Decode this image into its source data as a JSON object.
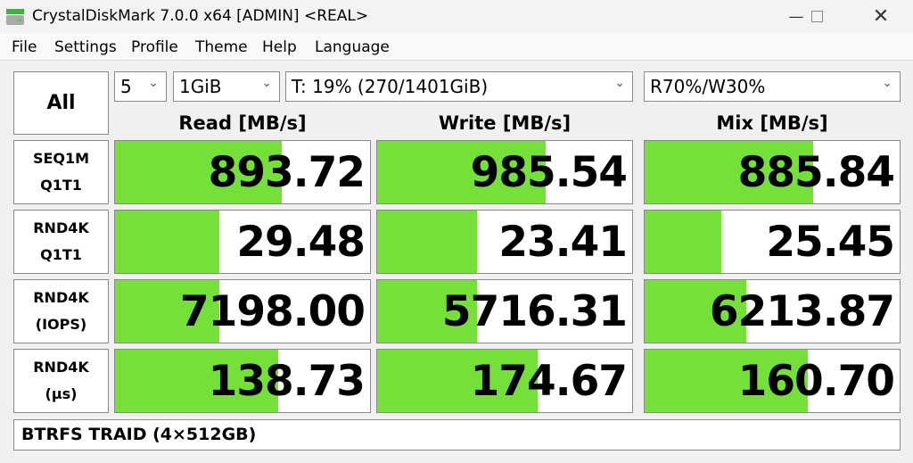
{
  "window": {
    "title": "CrystalDiskMark 7.0.0 x64 [ADMIN] <REAL>",
    "icons": [
      "app-disk-icon",
      "minimize-icon",
      "maximize-icon",
      "close-icon"
    ]
  },
  "menu": [
    "File",
    "Settings",
    "Profile",
    "Theme",
    "Help",
    "Language"
  ],
  "controls": {
    "all_label": "All",
    "count": "5",
    "size": "1GiB",
    "drive": "T: 19% (270/1401GiB)",
    "mix": "R70%/W30%"
  },
  "columns": [
    "Read [MB/s]",
    "Write [MB/s]",
    "Mix [MB/s]"
  ],
  "colors": {
    "bar": "#76e03a"
  },
  "rows": [
    {
      "label1": "SEQ1M",
      "label2": "Q1T1",
      "values": [
        "893.72",
        "985.54",
        "885.84"
      ],
      "fill": [
        0.655,
        0.66,
        0.66
      ]
    },
    {
      "label1": "RND4K",
      "label2": "Q1T1",
      "values": [
        "29.48",
        "23.41",
        "25.45"
      ],
      "fill": [
        0.41,
        0.39,
        0.3
      ]
    },
    {
      "label1": "RND4K",
      "label2": "(IOPS)",
      "values": [
        "7198.00",
        "5716.31",
        "6213.87"
      ],
      "fill": [
        0.41,
        0.39,
        0.4
      ]
    },
    {
      "label1": "RND4K",
      "label2": "(µs)",
      "values": [
        "138.73",
        "174.67",
        "160.70"
      ],
      "fill": [
        0.64,
        0.63,
        0.64
      ]
    }
  ],
  "comment": "BTRFS TRAID (4×512GB)"
}
